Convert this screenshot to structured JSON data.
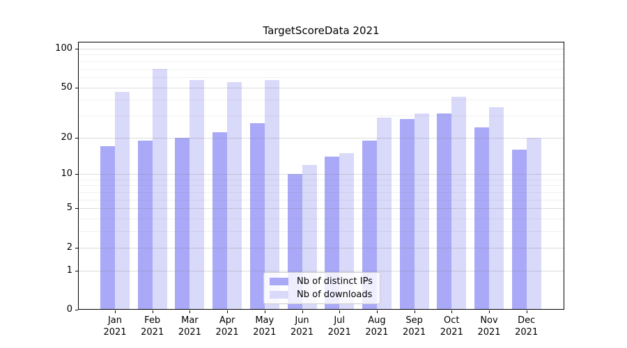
{
  "title": "TargetScoreData 2021",
  "chart_data": {
    "type": "bar",
    "title": "TargetScoreData 2021",
    "categories": [
      "Jan",
      "Feb",
      "Mar",
      "Apr",
      "May",
      "Jun",
      "Jul",
      "Aug",
      "Sep",
      "Oct",
      "Nov",
      "Dec"
    ],
    "category_year": "2021",
    "series": [
      {
        "name": "Nb of distinct IPs",
        "color": "#a9a9f7",
        "values": [
          17,
          19,
          20,
          22,
          26,
          10,
          14,
          19,
          28,
          31,
          24,
          16
        ]
      },
      {
        "name": "Nb of downloads",
        "color": "#d9d9f9",
        "values": [
          46,
          70,
          57,
          55,
          57,
          12,
          15,
          29,
          31,
          42,
          35,
          20
        ]
      }
    ],
    "xlabel": "",
    "ylabel": "",
    "yscale": "log1p",
    "ylim": [
      0,
      113
    ],
    "yticks": [
      100,
      50,
      20,
      10,
      5,
      2,
      1,
      0
    ],
    "minor_gridlines": [
      3,
      4,
      6,
      7,
      8,
      9,
      30,
      40,
      60,
      70,
      80,
      90
    ],
    "grid": true,
    "grid_above_bars": true,
    "legend_position": "lower center",
    "background": "#ffffff",
    "spine_color": "#000000"
  }
}
